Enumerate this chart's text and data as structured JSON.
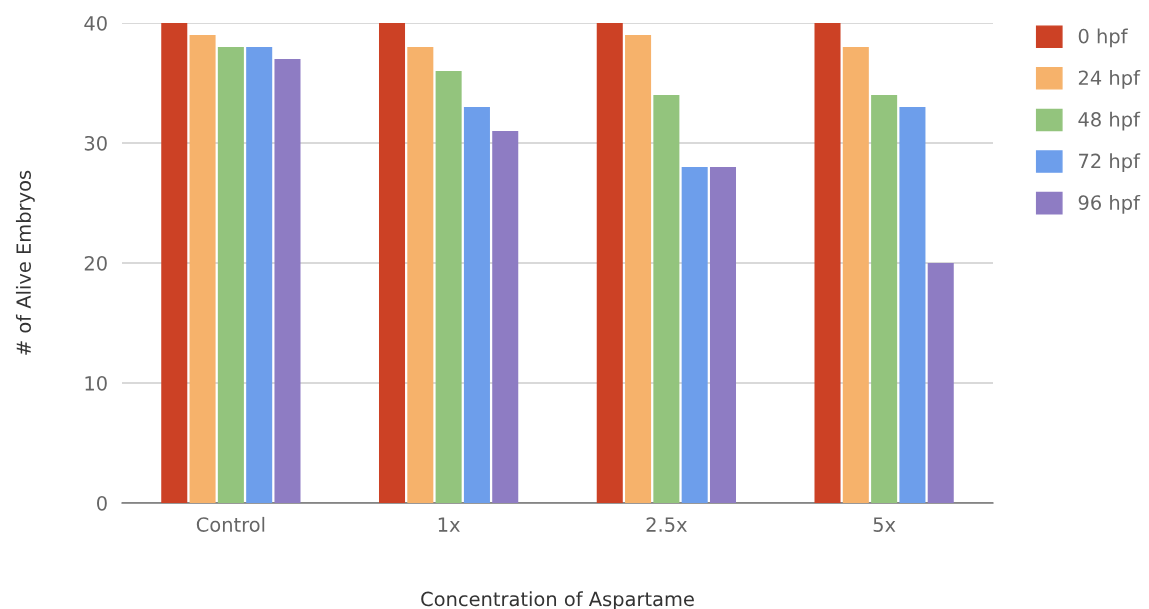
{
  "chart_data": {
    "type": "bar",
    "xlabel": "Concentration of Aspartame",
    "ylabel": "# of Alive Embryos",
    "categories": [
      "Control",
      "1x",
      "2.5x",
      "5x"
    ],
    "series": [
      {
        "name": "0 hpf",
        "color": "#cc4125",
        "values": [
          40,
          40,
          40,
          40
        ]
      },
      {
        "name": "24 hpf",
        "color": "#f6b26b",
        "values": [
          39,
          38,
          39,
          38
        ]
      },
      {
        "name": "48 hpf",
        "color": "#93c47d",
        "values": [
          38,
          36,
          34,
          34
        ]
      },
      {
        "name": "72 hpf",
        "color": "#6d9eeb",
        "values": [
          38,
          33,
          28,
          33
        ]
      },
      {
        "name": "96 hpf",
        "color": "#8e7cc3",
        "values": [
          37,
          31,
          28,
          20
        ]
      }
    ],
    "ylim": [
      0,
      40
    ],
    "yticks": [
      0,
      10,
      20,
      30,
      40
    ],
    "grid": "y",
    "legend": "top right"
  }
}
